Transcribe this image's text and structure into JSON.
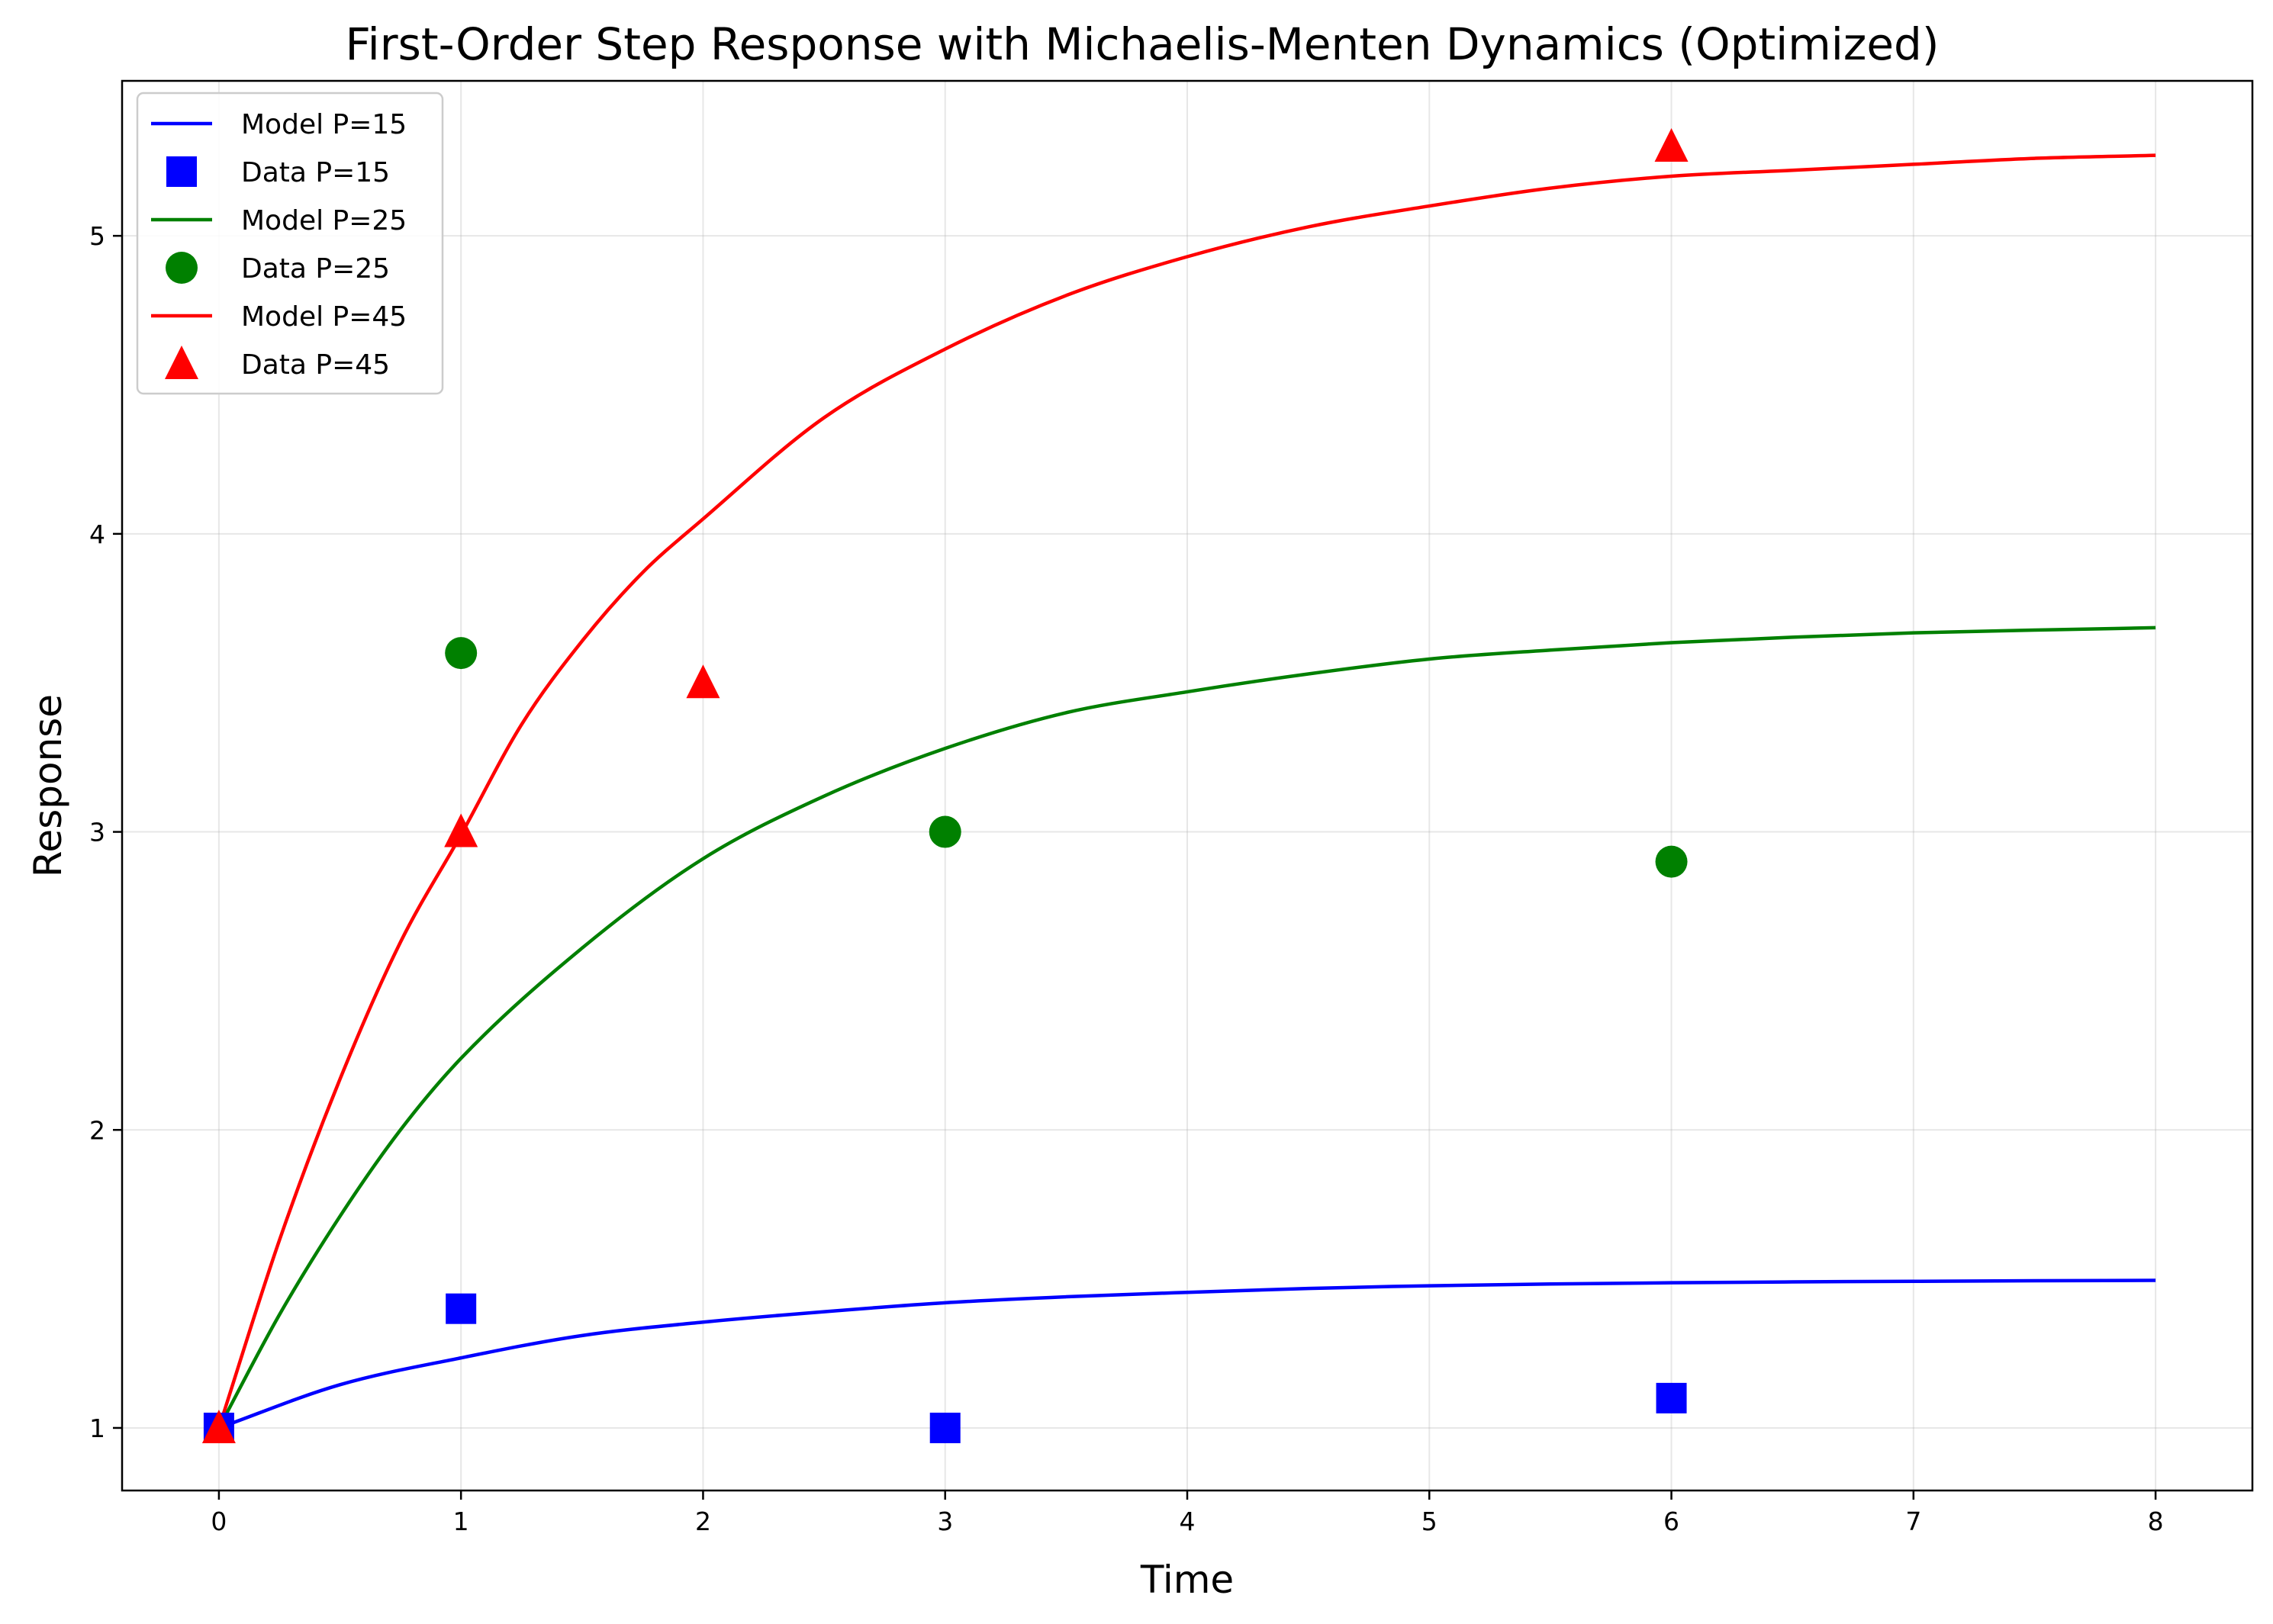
{
  "chart_data": {
    "type": "line",
    "title": "First-Order Step Response with Michaelis-Menten Dynamics (Optimized)",
    "xlabel": "Time",
    "ylabel": "Response",
    "xlim": [
      -0.4,
      8.4
    ],
    "ylim": [
      0.79,
      5.52
    ],
    "xticks": [
      0,
      1,
      2,
      3,
      4,
      5,
      6,
      7,
      8
    ],
    "yticks": [
      1,
      2,
      3,
      4,
      5
    ],
    "grid": true,
    "legend_position": "top-left",
    "series": [
      {
        "name": "Model P=15",
        "kind": "line",
        "color": "#0000ff",
        "x": [
          0,
          0.5,
          1,
          1.5,
          2,
          2.5,
          3,
          3.5,
          4,
          4.5,
          5,
          5.5,
          6,
          6.5,
          7,
          7.5,
          8
        ],
        "y": [
          1.0,
          1.145,
          1.235,
          1.31,
          1.355,
          1.39,
          1.42,
          1.44,
          1.455,
          1.468,
          1.477,
          1.483,
          1.487,
          1.49,
          1.492,
          1.494,
          1.495
        ]
      },
      {
        "name": "Data P=15",
        "kind": "scatter",
        "marker": "square",
        "color": "#0000ff",
        "x": [
          0,
          1,
          3,
          6
        ],
        "y": [
          1.0,
          1.4,
          1.0,
          1.1
        ]
      },
      {
        "name": "Model P=25",
        "kind": "line",
        "color": "#008000",
        "x": [
          0,
          0.25,
          0.5,
          0.75,
          1,
          1.5,
          2,
          2.5,
          3,
          3.5,
          4,
          4.5,
          5,
          5.5,
          6,
          6.5,
          7,
          7.5,
          8
        ],
        "y": [
          1.0,
          1.38,
          1.71,
          2.0,
          2.24,
          2.61,
          2.91,
          3.12,
          3.28,
          3.4,
          3.47,
          3.53,
          3.58,
          3.61,
          3.635,
          3.653,
          3.668,
          3.677,
          3.685
        ]
      },
      {
        "name": "Data P=25",
        "kind": "scatter",
        "marker": "circle",
        "color": "#008000",
        "x": [
          1,
          3,
          6
        ],
        "y": [
          3.6,
          3.0,
          2.9
        ]
      },
      {
        "name": "Model P=45",
        "kind": "line",
        "color": "#ff0000",
        "x": [
          0,
          0.25,
          0.5,
          0.75,
          1,
          1.25,
          1.5,
          1.75,
          2,
          2.5,
          3,
          3.5,
          4,
          4.5,
          5,
          5.5,
          6,
          6.5,
          7,
          7.5,
          8
        ],
        "y": [
          1.0,
          1.63,
          2.17,
          2.63,
          2.99,
          3.36,
          3.64,
          3.87,
          4.05,
          4.39,
          4.62,
          4.8,
          4.93,
          5.03,
          5.1,
          5.16,
          5.2,
          5.22,
          5.24,
          5.26,
          5.27
        ]
      },
      {
        "name": "Data P=45",
        "kind": "scatter",
        "marker": "triangle",
        "color": "#ff0000",
        "x": [
          0,
          1,
          2,
          6
        ],
        "y": [
          1.0,
          3.0,
          3.5,
          5.3
        ]
      }
    ]
  }
}
